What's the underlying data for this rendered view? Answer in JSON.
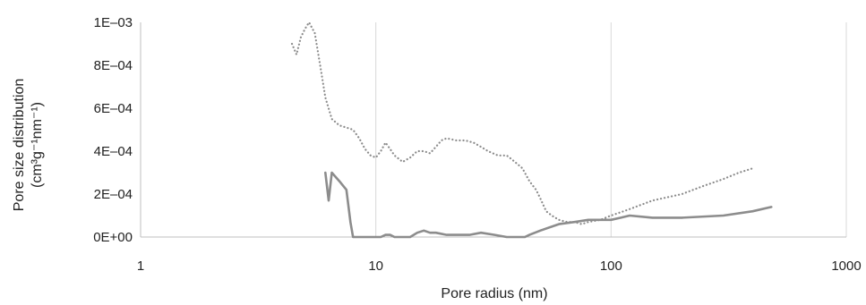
{
  "chart_data": {
    "type": "line",
    "xlabel": "Pore radius (nm)",
    "ylabel_line1": "Pore size distribution",
    "ylabel_line2": "(cm³g⁻¹nm⁻¹)",
    "x_scale": "log",
    "xlim": [
      1,
      1000
    ],
    "ylim": [
      0,
      0.001
    ],
    "x_ticks": [
      1,
      10,
      100,
      1000
    ],
    "x_tick_labels": [
      "1",
      "10",
      "100",
      "1000"
    ],
    "y_ticks": [
      0,
      0.0002,
      0.0004,
      0.0006,
      0.0008,
      0.001
    ],
    "y_tick_labels": [
      "0E+00",
      "2E–04",
      "4E–04",
      "6E–04",
      "8E–04",
      "1E–03"
    ],
    "grid": "vertical",
    "legend": "none",
    "colors": {
      "series": "#8c8c8c",
      "grid": "#d9d9d9",
      "axis": "#bfbfbf"
    },
    "series": [
      {
        "style": "dotted",
        "x": [
          4.4,
          4.6,
          4.8,
          5.0,
          5.2,
          5.5,
          5.8,
          6.1,
          6.5,
          7.0,
          7.5,
          8.0,
          8.5,
          9.0,
          9.5,
          10.0,
          10.5,
          11.0,
          11.5,
          12.0,
          13.0,
          14.0,
          15.0,
          16.0,
          17.0,
          18.0,
          19.0,
          20.0,
          22.0,
          24.0,
          26.0,
          28.0,
          30.0,
          33.0,
          36.0,
          38.0,
          40.0,
          42.0,
          45.0,
          48.0,
          50.0,
          53.0,
          56.0,
          60.0,
          65.0,
          70.0,
          75.0,
          80.0,
          90.0,
          100.0,
          120.0,
          150.0,
          200.0,
          250.0,
          300.0,
          350.0,
          400.0
        ],
        "y": [
          0.0009,
          0.00085,
          0.00093,
          0.00097,
          0.001,
          0.00095,
          0.0008,
          0.00065,
          0.00055,
          0.00052,
          0.00051,
          0.0005,
          0.00046,
          0.00041,
          0.00038,
          0.00037,
          0.0004,
          0.00044,
          0.00041,
          0.00038,
          0.00035,
          0.00037,
          0.0004,
          0.0004,
          0.00039,
          0.00042,
          0.00045,
          0.00046,
          0.00045,
          0.00045,
          0.00044,
          0.00042,
          0.0004,
          0.00038,
          0.00038,
          0.00036,
          0.00034,
          0.00032,
          0.00026,
          0.00022,
          0.00018,
          0.00012,
          0.0001,
          8e-05,
          7e-05,
          7e-05,
          6e-05,
          7e-05,
          8e-05,
          0.0001,
          0.00013,
          0.00017,
          0.0002,
          0.00024,
          0.00027,
          0.0003,
          0.00032
        ]
      },
      {
        "style": "solid",
        "x": [
          6.1,
          6.3,
          6.5,
          7.0,
          7.5,
          7.8,
          8.0,
          8.5,
          9.0,
          10.0,
          10.5,
          11.0,
          11.5,
          12.0,
          13.0,
          14.0,
          15.0,
          16.0,
          17.0,
          18.0,
          20.0,
          22.0,
          25.0,
          28.0,
          32.0,
          36.0,
          40.0,
          43.0,
          45.0,
          50.0,
          60.0,
          70.0,
          80.0,
          90.0,
          100.0,
          110.0,
          120.0,
          150.0,
          200.0,
          300.0,
          400.0,
          480.0
        ],
        "y": [
          0.0003,
          0.00017,
          0.0003,
          0.00026,
          0.00022,
          7e-05,
          0.0,
          0.0,
          0.0,
          0.0,
          0.0,
          1e-05,
          1e-05,
          0.0,
          0.0,
          0.0,
          2e-05,
          3e-05,
          2e-05,
          2e-05,
          1e-05,
          1e-05,
          1e-05,
          2e-05,
          1e-05,
          0.0,
          0.0,
          0.0,
          1e-05,
          3e-05,
          6e-05,
          7e-05,
          8e-05,
          8e-05,
          8e-05,
          9e-05,
          0.0001,
          9e-05,
          9e-05,
          0.0001,
          0.00012,
          0.00014
        ]
      }
    ]
  }
}
